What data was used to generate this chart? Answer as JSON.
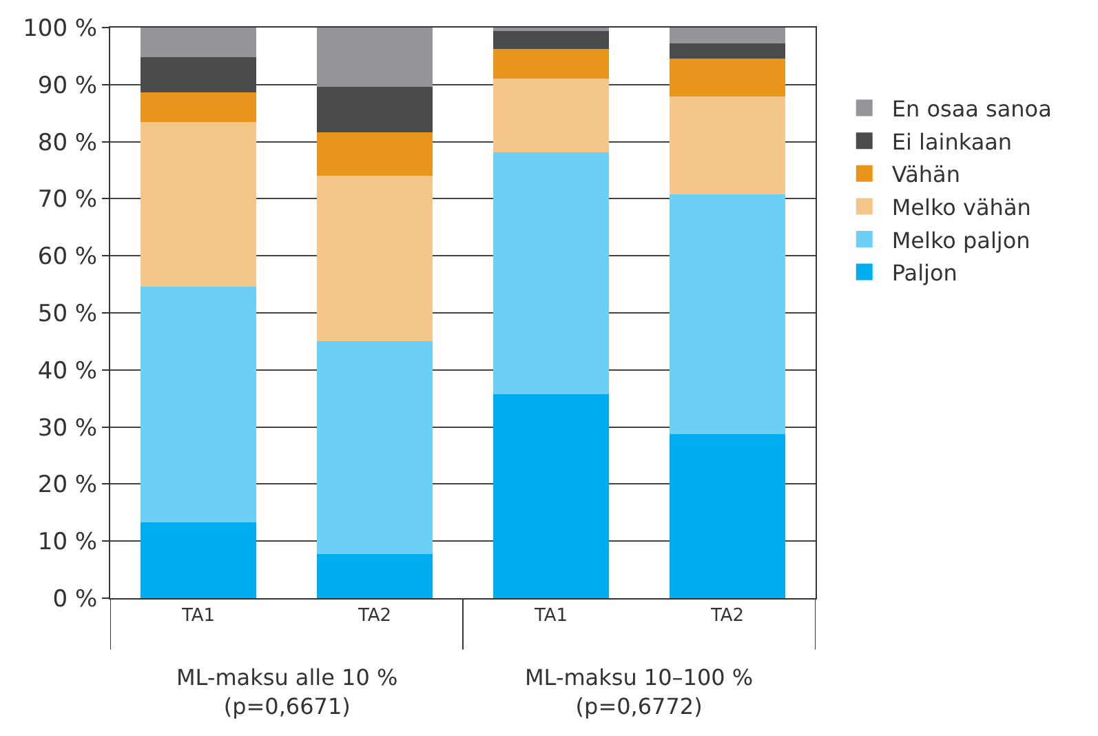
{
  "chart_data": {
    "type": "bar",
    "stacked": true,
    "categories": [
      "TA1",
      "TA2",
      "TA1",
      "TA2"
    ],
    "series": [
      {
        "name": "Paljon",
        "color": "#00aeef",
        "values": [
          13.3,
          7.7,
          35.7,
          28.8
        ]
      },
      {
        "name": "Melko paljon",
        "color": "#6dcff6",
        "values": [
          41.3,
          37.4,
          42.4,
          42.0
        ]
      },
      {
        "name": "Melko vähän",
        "color": "#f5c689",
        "values": [
          28.9,
          28.9,
          13.0,
          17.1
        ]
      },
      {
        "name": "Vähän",
        "color": "#e8951c",
        "values": [
          5.2,
          7.7,
          5.1,
          6.7
        ]
      },
      {
        "name": "Ei lainkaan",
        "color": "#4a4b4d",
        "values": [
          6.1,
          7.9,
          3.2,
          2.6
        ]
      },
      {
        "name": "En osaa sanoa",
        "color": "#939598",
        "values": [
          5.2,
          10.4,
          0.6,
          2.8
        ]
      }
    ],
    "ylim": [
      0,
      100
    ],
    "yticks": [
      {
        "value": 0,
        "label": "0 %"
      },
      {
        "value": 10,
        "label": "10 %"
      },
      {
        "value": 20,
        "label": "20 %"
      },
      {
        "value": 30,
        "label": "30 %"
      },
      {
        "value": 40,
        "label": "40 %"
      },
      {
        "value": 50,
        "label": "50 %"
      },
      {
        "value": 60,
        "label": "60 %"
      },
      {
        "value": 70,
        "label": "70 %"
      },
      {
        "value": 80,
        "label": "80 %"
      },
      {
        "value": 90,
        "label": "90 %"
      },
      {
        "value": 100,
        "label": "100 %"
      }
    ],
    "grid": "y",
    "legend": "right",
    "annotations": [
      "ML-maksu alle 10 %\n(p=0,6671)",
      "ML-maksu 10–100 %\n(p=0,6772)"
    ]
  }
}
